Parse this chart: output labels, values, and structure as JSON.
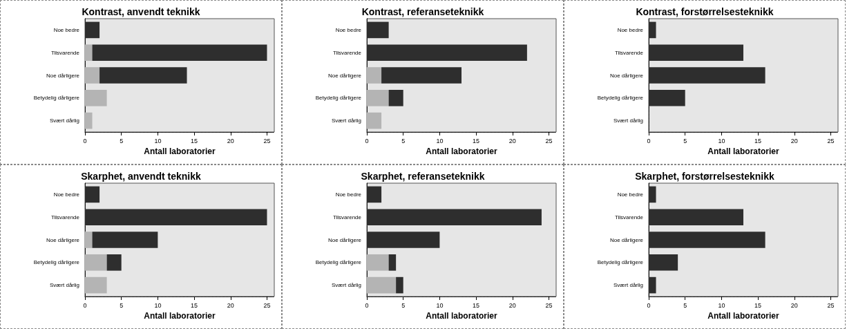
{
  "chart_data": [
    {
      "type": "bar",
      "title": "Kontrast, anvendt teknikk",
      "orientation": "horizontal",
      "stacked": true,
      "categories": [
        "Noe bedre",
        "Tilsvarende",
        "Noe dårligere",
        "Betydelig dårligere",
        "Svært dårlig"
      ],
      "series": [
        {
          "color": "#b4b4b4",
          "values": [
            0,
            1,
            2,
            3,
            1
          ]
        },
        {
          "color": "#2e2e2e",
          "values": [
            2,
            24,
            12,
            0,
            0
          ]
        }
      ],
      "xlim": [
        0,
        26
      ],
      "xticks": [
        0,
        5,
        10,
        15,
        20,
        25
      ],
      "xlabel": "Antall laboratorier"
    },
    {
      "type": "bar",
      "title": "Kontrast, referanseteknikk",
      "orientation": "horizontal",
      "stacked": true,
      "categories": [
        "Noe bedre",
        "Tilsvarende",
        "Noe dårligere",
        "Betydelig dårligere",
        "Svært dårlig"
      ],
      "series": [
        {
          "color": "#b4b4b4",
          "values": [
            0,
            0,
            2,
            3,
            2
          ]
        },
        {
          "color": "#2e2e2e",
          "values": [
            3,
            22,
            11,
            2,
            0
          ]
        }
      ],
      "xlim": [
        0,
        26
      ],
      "xticks": [
        0,
        5,
        10,
        15,
        20,
        25
      ],
      "xlabel": "Antall laboratorier"
    },
    {
      "type": "bar",
      "title": "Kontrast, forstørrelsesteknikk",
      "orientation": "horizontal",
      "stacked": true,
      "categories": [
        "Noe bedre",
        "Tilsvarende",
        "Noe dårligere",
        "Betydelig dårligere",
        "Svært dårlig"
      ],
      "series": [
        {
          "color": "#b4b4b4",
          "values": [
            0,
            0,
            0,
            0,
            0
          ]
        },
        {
          "color": "#2e2e2e",
          "values": [
            1,
            13,
            16,
            5,
            0
          ]
        }
      ],
      "xlim": [
        0,
        26
      ],
      "xticks": [
        0,
        5,
        10,
        15,
        20,
        25
      ],
      "xlabel": "Antall laboratorier"
    },
    {
      "type": "bar",
      "title": "Skarphet, anvendt teknikk",
      "orientation": "horizontal",
      "stacked": true,
      "categories": [
        "Noe bedre",
        "Tilsvarende",
        "Noe dårligere",
        "Betydelig dårligere",
        "Svært dårlig"
      ],
      "series": [
        {
          "color": "#b4b4b4",
          "values": [
            0,
            0,
            1,
            3,
            3
          ]
        },
        {
          "color": "#2e2e2e",
          "values": [
            2,
            25,
            9,
            2,
            0
          ]
        }
      ],
      "xlim": [
        0,
        26
      ],
      "xticks": [
        0,
        5,
        10,
        15,
        20,
        25
      ],
      "xlabel": "Antall laboratorier"
    },
    {
      "type": "bar",
      "title": "Skarphet, referanseteknikk",
      "orientation": "horizontal",
      "stacked": true,
      "categories": [
        "Noe bedre",
        "Tilsvarende",
        "Noe dårligere",
        "Betydelig dårligere",
        "Svært dårlig"
      ],
      "series": [
        {
          "color": "#b4b4b4",
          "values": [
            0,
            0,
            0,
            3,
            4
          ]
        },
        {
          "color": "#2e2e2e",
          "values": [
            2,
            24,
            10,
            1,
            1
          ]
        }
      ],
      "xlim": [
        0,
        26
      ],
      "xticks": [
        0,
        5,
        10,
        15,
        20,
        25
      ],
      "xlabel": "Antall laboratorier"
    },
    {
      "type": "bar",
      "title": "Skarphet, forstørrelsesteknikk",
      "orientation": "horizontal",
      "stacked": true,
      "categories": [
        "Noe bedre",
        "Tilsvarende",
        "Noe dårligere",
        "Betydelig dårligere",
        "Svært dårlig"
      ],
      "series": [
        {
          "color": "#b4b4b4",
          "values": [
            0,
            0,
            0,
            0,
            0
          ]
        },
        {
          "color": "#2e2e2e",
          "values": [
            1,
            13,
            16,
            4,
            1
          ]
        }
      ],
      "xlim": [
        0,
        26
      ],
      "xticks": [
        0,
        5,
        10,
        15,
        20,
        25
      ],
      "xlabel": "Antall laboratorier"
    }
  ]
}
